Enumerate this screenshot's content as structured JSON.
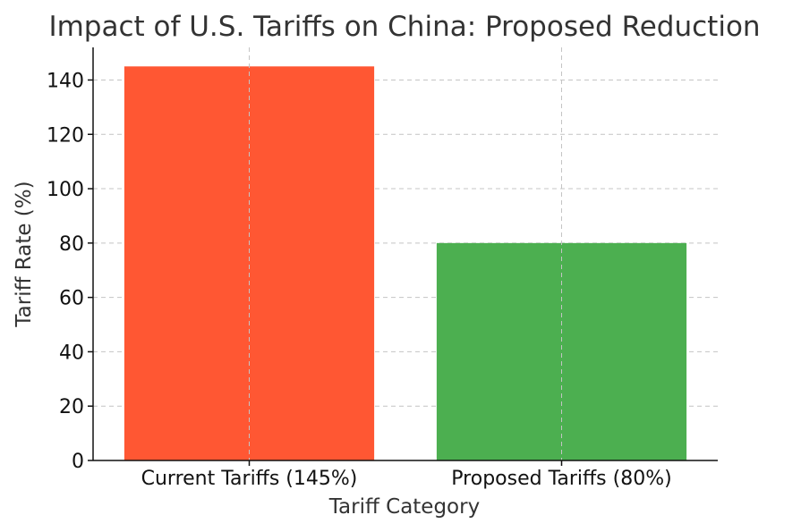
{
  "chart_data": {
    "type": "bar",
    "title": "Impact of U.S. Tariffs on China: Proposed Reduction",
    "xlabel": "Tariff Category",
    "ylabel": "Tariff Rate (%)",
    "categories": [
      "Current Tariffs (145%)",
      "Proposed Tariffs (80%)"
    ],
    "values": [
      145,
      80
    ],
    "colors": [
      "#FF5733",
      "#4CAF50"
    ],
    "ylim": [
      0,
      152
    ],
    "yticks": [
      0,
      20,
      40,
      60,
      80,
      100,
      120,
      140
    ],
    "grid": true
  }
}
